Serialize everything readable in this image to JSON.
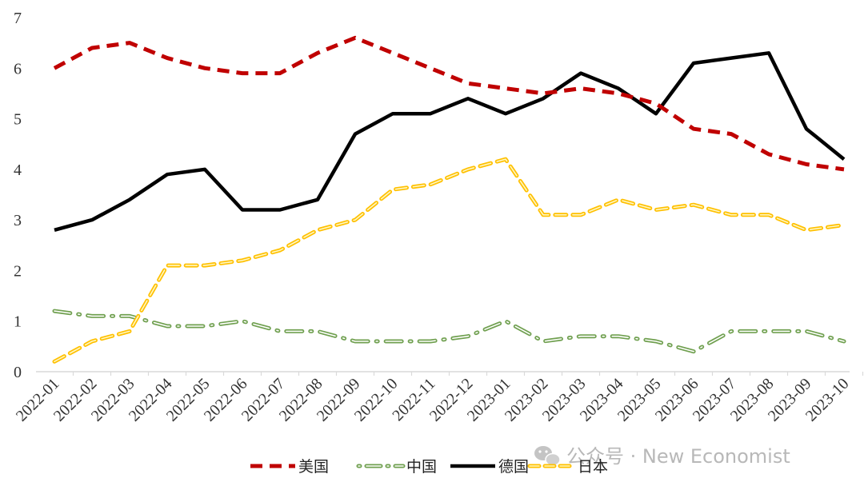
{
  "chart_data": {
    "type": "line",
    "title": "",
    "xlabel": "",
    "ylabel": "",
    "ylim": [
      0,
      7
    ],
    "yticks": [
      0,
      1,
      2,
      3,
      4,
      5,
      6,
      7
    ],
    "grid": false,
    "legend_position": "bottom",
    "categories": [
      "2022-01",
      "2022-02",
      "2022-03",
      "2022-04",
      "2022-05",
      "2022-06",
      "2022-07",
      "2022-08",
      "2022-09",
      "2022-10",
      "2022-11",
      "2022-12",
      "2023-01",
      "2023-02",
      "2023-03",
      "2023-04",
      "2023-05",
      "2023-06",
      "2023-07",
      "2023-08",
      "2023-09",
      "2023-10"
    ],
    "series": [
      {
        "name": "美国",
        "color": "#c00000",
        "style": "dashed-thick",
        "values": [
          6.0,
          6.4,
          6.5,
          6.2,
          6.0,
          5.9,
          5.9,
          6.3,
          6.6,
          6.3,
          6.0,
          5.7,
          5.6,
          5.5,
          5.6,
          5.5,
          5.3,
          4.8,
          4.7,
          4.3,
          4.1,
          4.0
        ]
      },
      {
        "name": "中国",
        "color": "#70a050",
        "style": "dash-dot-outline",
        "values": [
          1.2,
          1.1,
          1.1,
          0.9,
          0.9,
          1.0,
          0.8,
          0.8,
          0.6,
          0.6,
          0.6,
          0.7,
          1.0,
          0.6,
          0.7,
          0.7,
          0.6,
          0.4,
          0.8,
          0.8,
          0.8,
          0.6
        ]
      },
      {
        "name": "德国",
        "color": "#000000",
        "style": "solid",
        "values": [
          2.8,
          3.0,
          3.4,
          3.9,
          4.0,
          3.2,
          3.2,
          3.4,
          4.7,
          5.1,
          5.1,
          5.4,
          5.1,
          5.4,
          5.9,
          5.6,
          5.1,
          6.1,
          6.2,
          6.3,
          4.8,
          4.2
        ]
      },
      {
        "name": "日本",
        "color": "#ffc000",
        "style": "dashed-outline",
        "values": [
          0.2,
          0.6,
          0.8,
          2.1,
          2.1,
          2.2,
          2.4,
          2.8,
          3.0,
          3.6,
          3.7,
          4.0,
          4.2,
          3.1,
          3.1,
          3.4,
          3.2,
          3.3,
          3.1,
          3.1,
          2.8,
          2.9
        ]
      }
    ]
  },
  "watermark": {
    "icon": "wechat-icon",
    "text": "公众号 · New Economist"
  }
}
